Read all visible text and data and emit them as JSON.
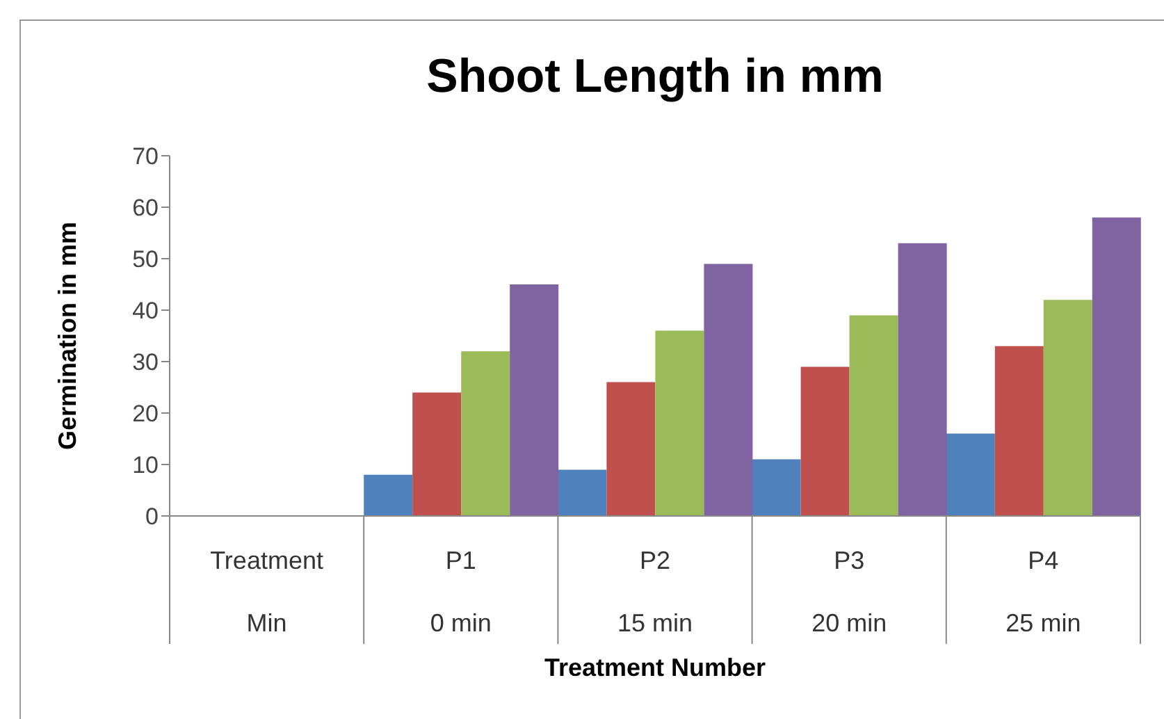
{
  "chart_data": {
    "type": "bar",
    "title": "Shoot Length in mm",
    "xlabel": "Treatment Number",
    "ylabel": "Germination in mm",
    "categories": [
      "Treatment\nMin",
      "P1\n0 min",
      "P2\n15 min",
      "P3\n20 min",
      "P4\n25 min"
    ],
    "series": [
      {
        "color": "#4f81bd",
        "values": [
          null,
          8,
          9,
          11,
          16
        ]
      },
      {
        "color": "#c0504d",
        "values": [
          null,
          24,
          26,
          29,
          33
        ]
      },
      {
        "color": "#9bbb59",
        "values": [
          null,
          32,
          36,
          39,
          42
        ]
      },
      {
        "color": "#8064a2",
        "values": [
          null,
          45,
          49,
          53,
          58
        ]
      }
    ],
    "ylim": [
      0,
      70
    ],
    "yticks": [
      0,
      10,
      20,
      30,
      40,
      50,
      60,
      70
    ],
    "grid": false,
    "legend": false
  }
}
